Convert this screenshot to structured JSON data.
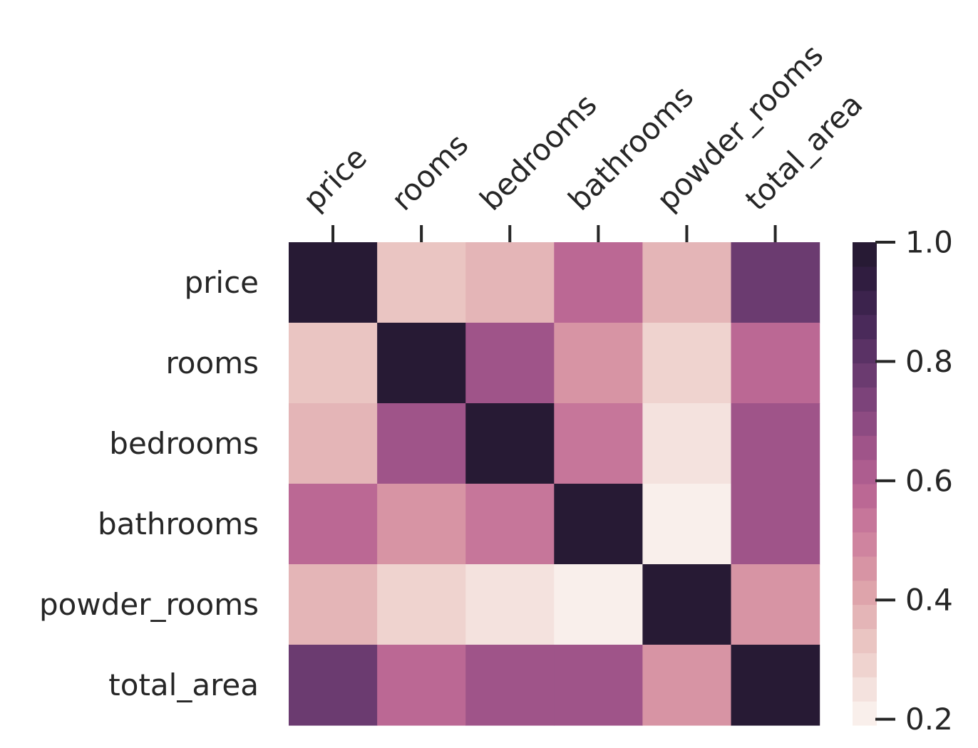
{
  "chart_data": {
    "type": "heatmap",
    "title": "",
    "xlabel": "",
    "ylabel": "",
    "x_tick_position": "top",
    "x_tick_rotation_deg": -45,
    "x_categories": [
      "price",
      "rooms",
      "bedrooms",
      "bathrooms",
      "powder_rooms",
      "total_area"
    ],
    "y_categories": [
      "price",
      "rooms",
      "bedrooms",
      "bathrooms",
      "powder_rooms",
      "total_area"
    ],
    "values": [
      [
        1.0,
        0.33,
        0.36,
        0.57,
        0.36,
        0.77
      ],
      [
        0.33,
        1.0,
        0.66,
        0.47,
        0.31,
        0.57
      ],
      [
        0.36,
        0.66,
        1.0,
        0.53,
        0.27,
        0.66
      ],
      [
        0.57,
        0.47,
        0.53,
        1.0,
        0.19,
        0.66
      ],
      [
        0.36,
        0.31,
        0.27,
        0.19,
        1.0,
        0.44
      ],
      [
        0.77,
        0.57,
        0.66,
        0.66,
        0.44,
        1.0
      ]
    ],
    "colorbar": {
      "min": 0.19,
      "max": 1.0,
      "levels": 20,
      "ticks": [
        "0.2",
        "0.4",
        "0.6",
        "0.8",
        "1.0"
      ],
      "placement": "right",
      "palette": [
        "#f9efeb",
        "#f4e2de",
        "#efd3cf",
        "#eac5c2",
        "#e4b5b7",
        "#dea4ab",
        "#d794a4",
        "#cf849f",
        "#c6769a",
        "#bb6894",
        "#ad5d8f",
        "#9f5489",
        "#8d4b82",
        "#7c437a",
        "#6b3b70",
        "#5a3265",
        "#4a2a5a",
        "#3c234d",
        "#301d40",
        "#271a34"
      ]
    }
  }
}
